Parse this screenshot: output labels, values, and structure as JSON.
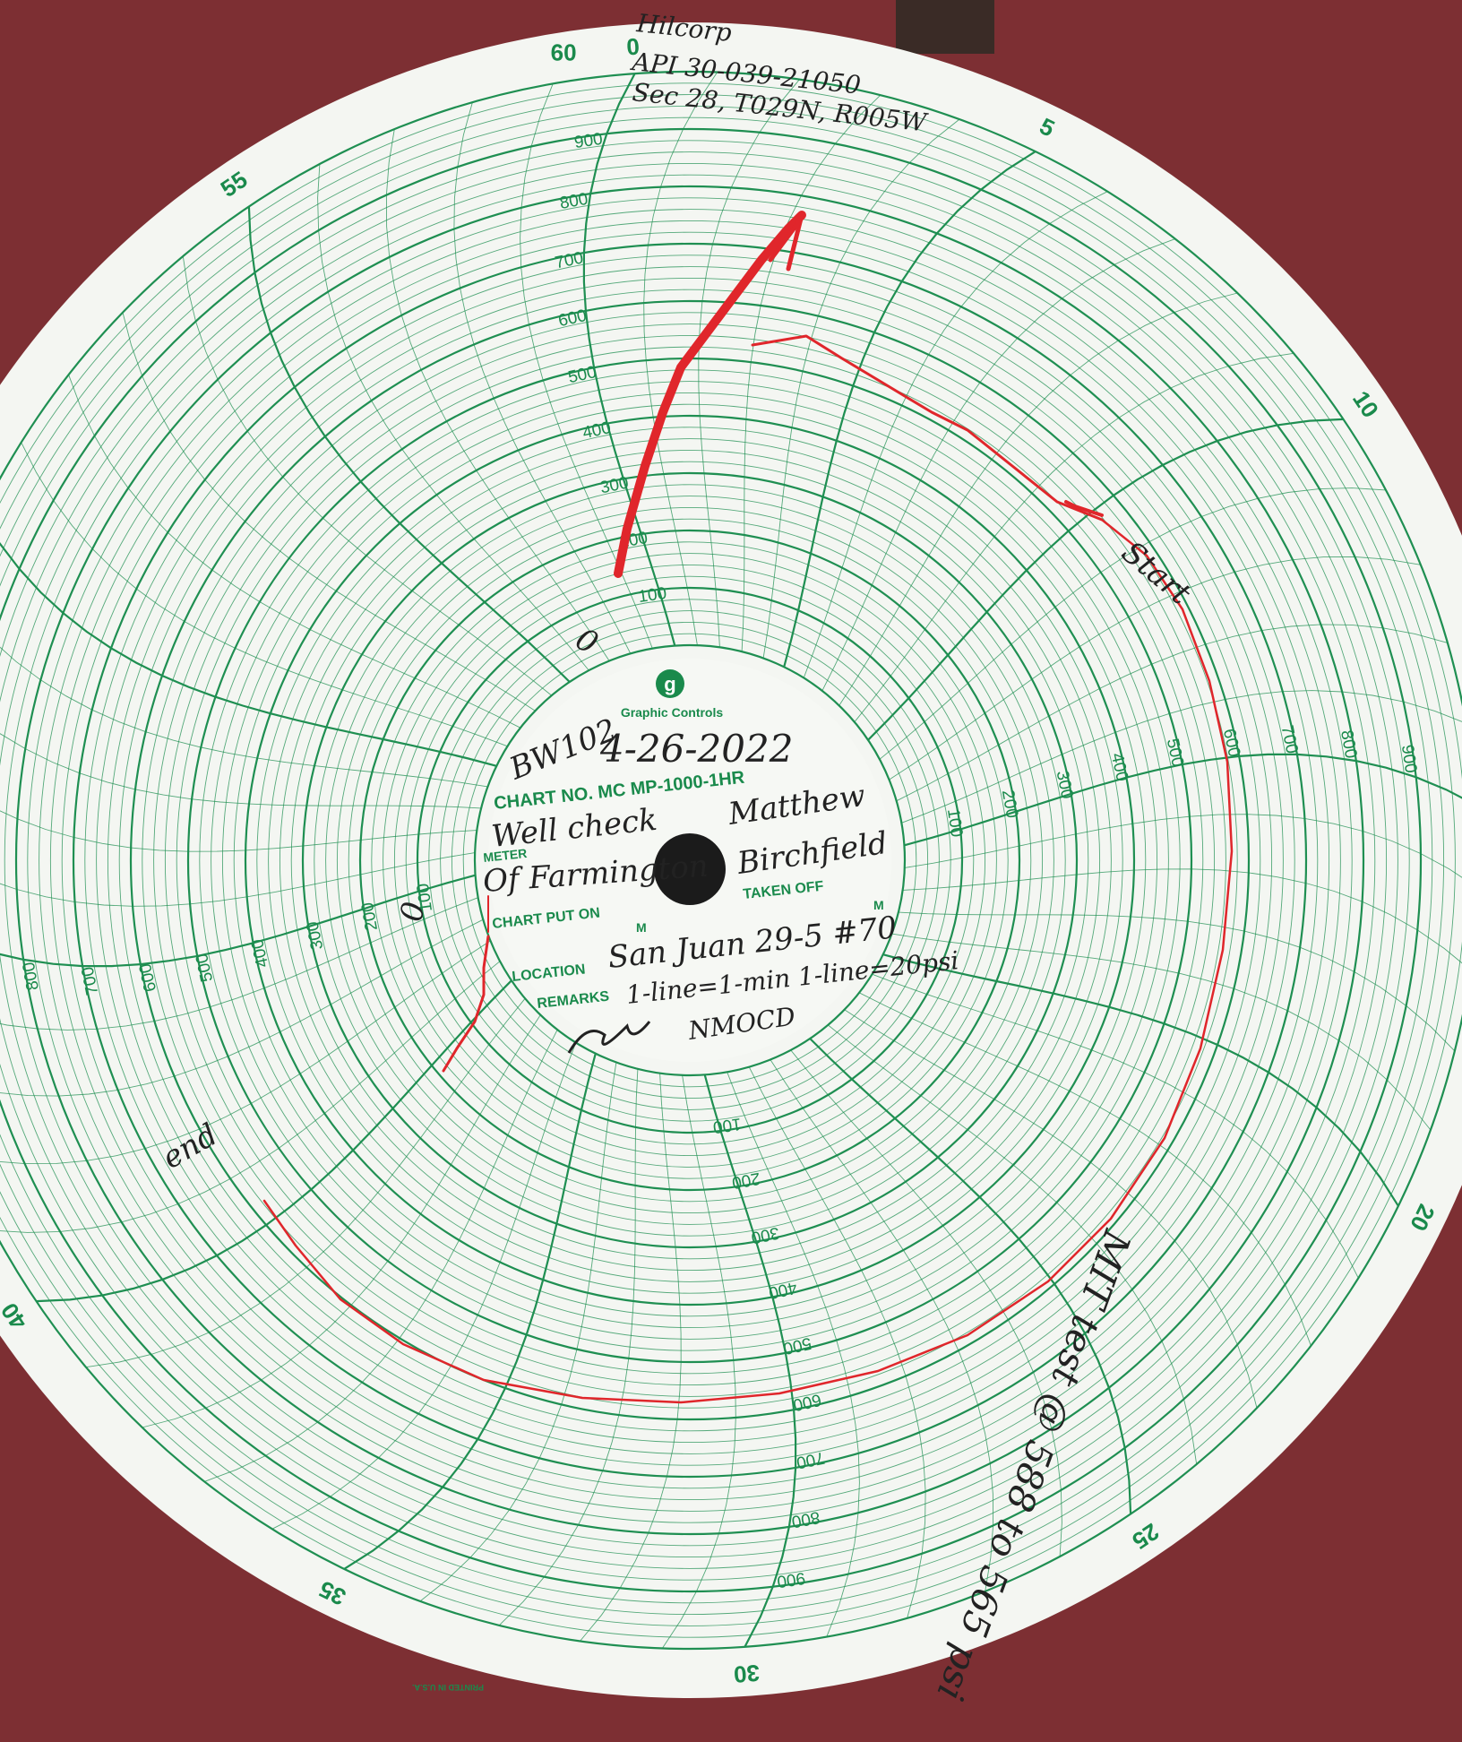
{
  "photo": {
    "background_color": "#7d2f33",
    "paper_color": "#f4f6f2",
    "grid_color": "#1f8f52",
    "trace_color": "#e0262b"
  },
  "chart": {
    "brand": "Graphic Controls",
    "brand_logo": "g",
    "chart_no_label": "CHART NO. MC MP-1000-1HR",
    "meter_label": "METER",
    "chart_put_on_label": "CHART PUT ON",
    "taken_off_label": "TAKEN OFF",
    "m_label": "M",
    "location_label": "LOCATION",
    "remarks_label": "REMARKS",
    "printed_in": "PRINTED IN U.S.A.",
    "minute_labels": [
      "60",
      "0",
      "5",
      "10",
      "20",
      "25",
      "30",
      "35",
      "40",
      "55"
    ],
    "scale_labels": [
      "100",
      "200",
      "300",
      "400",
      "500",
      "600",
      "700",
      "800",
      "900"
    ]
  },
  "handwriting": {
    "operator": "Hilcorp",
    "api": "API 30-039-21050",
    "section": "Sec 28, T029N, R005W",
    "well_id": "BW102",
    "date": "4-26-2022",
    "meter_value_1": "Well check",
    "meter_value_2": "Of Farmington",
    "taken_off_by_1": "Matthew",
    "taken_off_by_2": "Birchfield",
    "location": "San Juan 29-5 #70",
    "remarks": "1-line=1-min 1-line=20psi",
    "witness": "NMOCD",
    "start_note": "Start",
    "end_note": "end",
    "zero_mark": "0",
    "mit_note": "MIT test @ 588 to 565 psi"
  }
}
